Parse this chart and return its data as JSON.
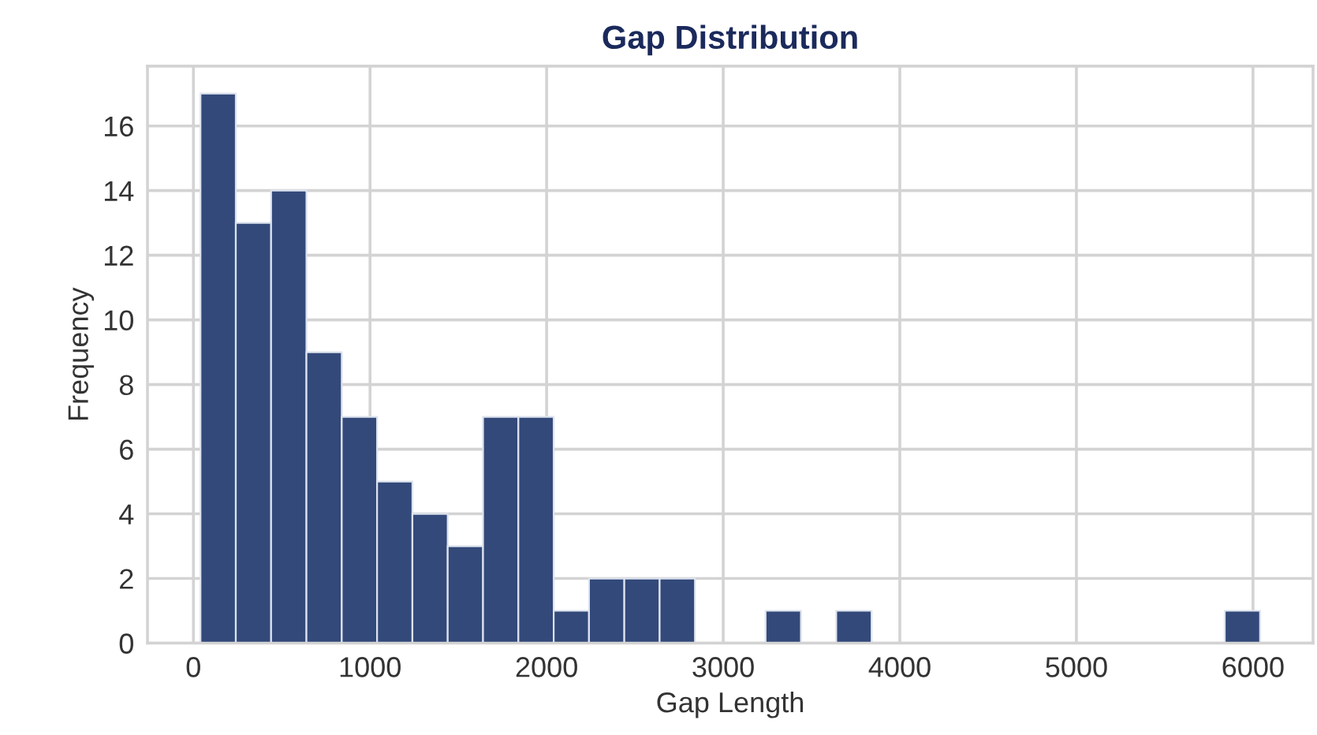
{
  "chart_data": {
    "type": "histogram",
    "title": "Gap Distribution",
    "xlabel": "Gap Length",
    "ylabel": "Frequency",
    "bins": [
      40,
      240,
      440,
      640,
      840,
      1040,
      1240,
      1440,
      1640,
      1840,
      2040,
      2240,
      2440,
      2640,
      2840,
      3040,
      3240,
      3440,
      3640,
      3840,
      4040,
      4240,
      4440,
      4640,
      4840,
      5040,
      5240,
      5440,
      5640,
      5840,
      6040
    ],
    "values": [
      17,
      13,
      14,
      9,
      7,
      5,
      4,
      3,
      7,
      7,
      1,
      2,
      2,
      2,
      0,
      0,
      1,
      0,
      1,
      0,
      0,
      0,
      0,
      0,
      0,
      0,
      0,
      0,
      0,
      1
    ],
    "color": "#33497a",
    "xlim": [
      -260,
      6340
    ],
    "ylim": [
      0,
      17.85
    ],
    "xticks": [
      0,
      1000,
      2000,
      3000,
      4000,
      5000,
      6000
    ],
    "yticks": [
      0,
      2,
      4,
      6,
      8,
      10,
      12,
      14,
      16
    ],
    "grid": true
  }
}
